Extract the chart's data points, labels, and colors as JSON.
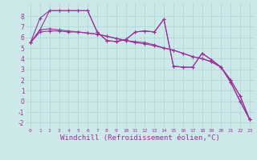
{
  "background_color": "#cce8e8",
  "grid_color": "#aad4d4",
  "line_color": "#993399",
  "marker": "+",
  "marker_size": 3,
  "linewidth": 0.8,
  "xlabel": "Windchill (Refroidissement éolien,°C)",
  "xlabel_fontsize": 6.5,
  "xlim": [
    -0.5,
    23.5
  ],
  "ylim": [
    -2.5,
    9.2
  ],
  "yticks": [
    -2,
    -1,
    0,
    1,
    2,
    3,
    4,
    5,
    6,
    7,
    8
  ],
  "xticks": [
    0,
    1,
    2,
    3,
    4,
    5,
    6,
    7,
    8,
    9,
    10,
    11,
    12,
    13,
    14,
    15,
    16,
    17,
    18,
    19,
    20,
    21,
    22,
    23
  ],
  "series": [
    {
      "x": [
        0,
        1,
        2,
        3,
        4,
        5,
        6,
        7,
        8,
        9,
        10,
        11,
        12,
        13,
        14,
        15,
        16,
        17,
        18,
        19,
        20,
        21,
        22,
        23
      ],
      "y": [
        5.5,
        6.7,
        8.5,
        8.5,
        8.5,
        8.5,
        8.5,
        6.5,
        5.7,
        5.6,
        5.8,
        6.5,
        6.6,
        6.5,
        7.7,
        3.3,
        3.2,
        3.2,
        4.5,
        3.9,
        3.2,
        1.8,
        0.0,
        -1.7
      ]
    },
    {
      "x": [
        0,
        1,
        2,
        3,
        4,
        5,
        6,
        7,
        8,
        9,
        10,
        11,
        12,
        13,
        14,
        15,
        16,
        17,
        18,
        19,
        20,
        21,
        22,
        23
      ],
      "y": [
        5.5,
        7.8,
        8.5,
        8.5,
        8.5,
        8.5,
        8.5,
        6.5,
        5.7,
        5.6,
        5.8,
        6.5,
        6.6,
        6.5,
        7.7,
        3.3,
        3.2,
        3.2,
        4.5,
        3.9,
        3.2,
        1.8,
        0.0,
        -1.7
      ]
    },
    {
      "x": [
        0,
        1,
        2,
        3,
        4,
        5,
        6,
        7,
        8,
        9,
        10,
        11,
        12,
        13,
        14,
        15,
        16,
        17,
        18,
        19,
        20,
        21,
        22,
        23
      ],
      "y": [
        5.5,
        6.7,
        6.8,
        6.7,
        6.6,
        6.5,
        6.4,
        6.3,
        6.1,
        5.9,
        5.7,
        5.5,
        5.4,
        5.2,
        5.0,
        4.8,
        4.5,
        4.2,
        4.0,
        3.7,
        3.2,
        2.0,
        0.5,
        -1.7
      ]
    },
    {
      "x": [
        0,
        1,
        2,
        3,
        4,
        5,
        6,
        7,
        8,
        9,
        10,
        11,
        12,
        13,
        14,
        15,
        16,
        17,
        18,
        19,
        20,
        21,
        22,
        23
      ],
      "y": [
        5.5,
        6.5,
        6.6,
        6.6,
        6.5,
        6.5,
        6.4,
        6.3,
        6.1,
        5.9,
        5.7,
        5.6,
        5.5,
        5.3,
        5.0,
        4.8,
        4.5,
        4.2,
        4.0,
        3.7,
        3.2,
        2.0,
        0.5,
        -1.7
      ]
    }
  ]
}
